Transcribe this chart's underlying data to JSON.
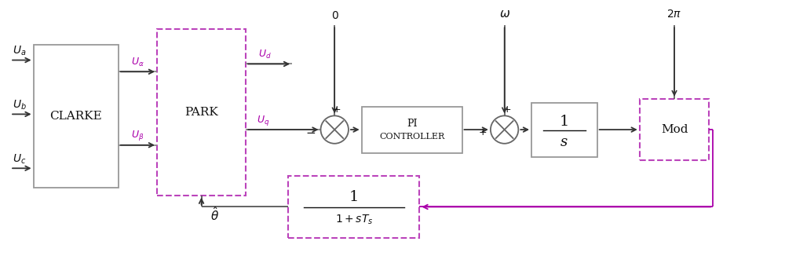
{
  "bg_color": "#ffffff",
  "line_color": "#555555",
  "dark_color": "#333333",
  "purple_color": "#aa00aa",
  "arrow_color": "#222222",
  "box_border_gray": "#888888",
  "purple_border": "#bb44bb",
  "text_color": "#111111",
  "fig_width": 10.0,
  "fig_height": 3.4,
  "dpi": 100,
  "clarke_label": "CLARKE",
  "park_label": "PARK",
  "pi_label_1": "PI",
  "pi_label_2": "CONTROLLER",
  "integrator_label": "1",
  "integrator_label2": "s",
  "mod_label": "Mod",
  "filter_label_num": "1",
  "filter_label_den": "1+sT_s"
}
